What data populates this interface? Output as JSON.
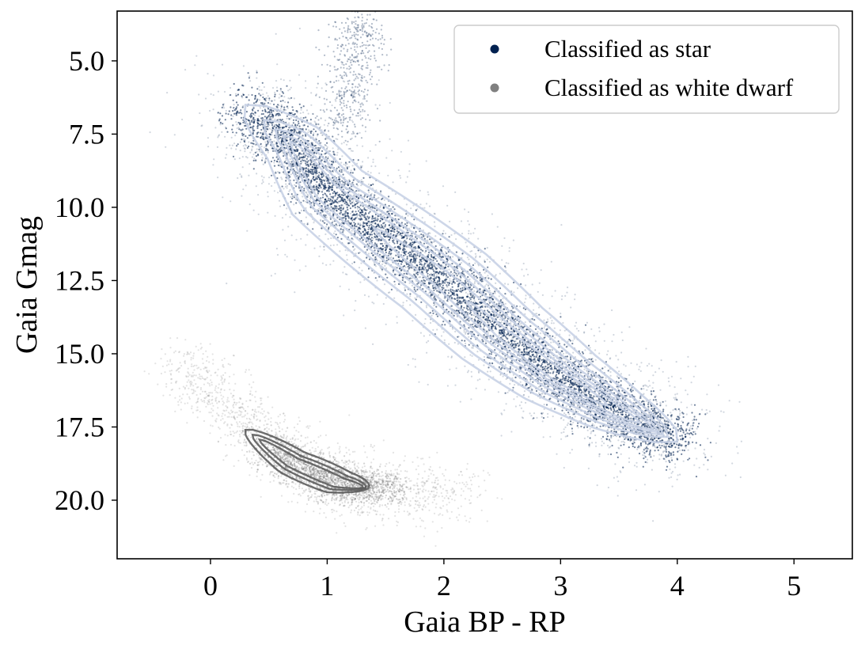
{
  "chart_data": {
    "type": "scatter",
    "xlabel": "Gaia BP - RP",
    "ylabel": "Gaia Gmag",
    "xlim": [
      -0.8,
      5.5
    ],
    "ylim": [
      22.0,
      3.3
    ],
    "y_inverted": true,
    "xticks": [
      0,
      1,
      2,
      3,
      4,
      5
    ],
    "xtick_labels": [
      "0",
      "1",
      "2",
      "3",
      "4",
      "5"
    ],
    "yticks": [
      5.0,
      7.5,
      10.0,
      12.5,
      15.0,
      17.5,
      20.0
    ],
    "ytick_labels": [
      "5.0",
      "7.5",
      "10.0",
      "12.5",
      "15.0",
      "17.5",
      "20.0"
    ],
    "legend_position": "top-right",
    "series": [
      {
        "name": "Classified as star",
        "color": "#002150",
        "contour_color": "#c8d2e6",
        "ridge": [
          [
            0.3,
            6.5
          ],
          [
            0.7,
            7.8
          ],
          [
            1.0,
            9.5
          ],
          [
            1.5,
            11.0
          ],
          [
            2.0,
            12.5
          ],
          [
            2.5,
            14.3
          ],
          [
            3.0,
            15.8
          ],
          [
            3.5,
            17.0
          ],
          [
            4.0,
            18.0
          ]
        ],
        "branch": [
          [
            1.1,
            7.5
          ],
          [
            1.2,
            6.0
          ],
          [
            1.25,
            4.5
          ],
          [
            1.3,
            3.5
          ]
        ],
        "density_peak": [
          2.7,
          15.2
        ]
      },
      {
        "name": "Classified as white dwarf",
        "color": "#808080",
        "contour_color": "#555555",
        "ridge": [
          [
            -0.3,
            15.3
          ],
          [
            0.2,
            17.0
          ],
          [
            0.6,
            18.5
          ],
          [
            1.0,
            19.3
          ],
          [
            1.4,
            19.6
          ],
          [
            2.2,
            19.8
          ]
        ],
        "density_peak": [
          0.9,
          19.1
        ]
      }
    ]
  }
}
